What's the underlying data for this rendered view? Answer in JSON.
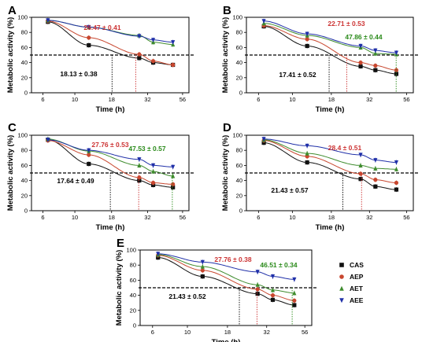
{
  "colors": {
    "CAS": "#111111",
    "AEP": "#c8472f",
    "AET": "#3f8c2e",
    "AEE": "#1f2fa8",
    "ann_red": "#cc3333",
    "ann_green": "#2a8a1a",
    "ann_black": "#000000"
  },
  "legend": [
    {
      "label": "CAS",
      "marker": "square",
      "color_key": "CAS"
    },
    {
      "label": "AEP",
      "marker": "circle",
      "color_key": "AEP"
    },
    {
      "label": "AET",
      "marker": "triangle-up",
      "color_key": "AET"
    },
    {
      "label": "AEE",
      "marker": "triangle-down",
      "color_key": "AEE"
    }
  ],
  "chart_data": [
    {
      "panel": "A",
      "type": "scatter",
      "x_axis": "log",
      "xlabel": "Time (h)",
      "ylabel": "Metabolic activity (%)",
      "x_ticks": [
        6,
        10,
        18,
        32,
        56
      ],
      "y_ticks": [
        0,
        20,
        40,
        60,
        80,
        100
      ],
      "ylim": [
        0,
        100
      ],
      "threshold_line": 50,
      "series": [
        {
          "name": "CAS",
          "x": [
            6.5,
            12.5,
            28,
            35,
            48
          ],
          "y": [
            94,
            63,
            46,
            40,
            37
          ]
        },
        {
          "name": "AEP",
          "x": [
            6.5,
            12.5,
            28,
            35,
            48
          ],
          "y": [
            95,
            73,
            51,
            42,
            37
          ]
        },
        {
          "name": "AET",
          "x": [
            6.5,
            12.5,
            28,
            35,
            48
          ],
          "y": [
            96,
            87,
            76,
            67,
            64
          ]
        },
        {
          "name": "AEE",
          "x": [
            6.5,
            12.5,
            28,
            35,
            48
          ],
          "y": [
            96,
            87,
            75,
            70,
            67
          ]
        }
      ],
      "annotations": [
        {
          "text": "26.47 ± 0.41",
          "color_key": "ann_red",
          "x": 26.47
        },
        {
          "text": "18.13 ± 0.38",
          "color_key": "ann_black",
          "x": 18.13
        }
      ]
    },
    {
      "panel": "B",
      "type": "scatter",
      "x_axis": "log",
      "xlabel": "Time (h)",
      "ylabel": "Metabolic activity (%)",
      "x_ticks": [
        6,
        10,
        18,
        32,
        56
      ],
      "y_ticks": [
        0,
        20,
        40,
        60,
        80,
        100
      ],
      "ylim": [
        0,
        100
      ],
      "threshold_line": 50,
      "series": [
        {
          "name": "CAS",
          "x": [
            6.5,
            12.5,
            28,
            35,
            48
          ],
          "y": [
            88,
            62,
            35,
            30,
            25
          ]
        },
        {
          "name": "AEP",
          "x": [
            6.5,
            12.5,
            28,
            35,
            48
          ],
          "y": [
            89,
            71,
            40,
            36,
            30
          ]
        },
        {
          "name": "AET",
          "x": [
            6.5,
            12.5,
            28,
            35,
            48
          ],
          "y": [
            92,
            76,
            60,
            52,
            51
          ]
        },
        {
          "name": "AEE",
          "x": [
            6.5,
            12.5,
            28,
            35,
            48
          ],
          "y": [
            95,
            78,
            62,
            56,
            53
          ]
        }
      ],
      "annotations": [
        {
          "text": "22.71 ± 0.53",
          "color_key": "ann_red",
          "x": 22.71
        },
        {
          "text": "47.86 ± 0.44",
          "color_key": "ann_green",
          "x": 47.86
        },
        {
          "text": "17.41 ± 0.52",
          "color_key": "ann_black",
          "x": 17.41
        }
      ]
    },
    {
      "panel": "C",
      "type": "scatter",
      "x_axis": "log",
      "xlabel": "Time (h)",
      "ylabel": "Metabolic activity (%)",
      "x_ticks": [
        6,
        10,
        18,
        32,
        56
      ],
      "y_ticks": [
        0,
        20,
        40,
        60,
        80,
        100
      ],
      "ylim": [
        0,
        100
      ],
      "threshold_line": 50,
      "series": [
        {
          "name": "CAS",
          "x": [
            6.5,
            12.5,
            28,
            35,
            48
          ],
          "y": [
            94,
            62,
            40,
            34,
            31
          ]
        },
        {
          "name": "AEP",
          "x": [
            6.5,
            12.5,
            28,
            35,
            48
          ],
          "y": [
            93,
            74,
            44,
            37,
            35
          ]
        },
        {
          "name": "AET",
          "x": [
            6.5,
            12.5,
            28,
            35,
            48
          ],
          "y": [
            95,
            79,
            60,
            52,
            46
          ]
        },
        {
          "name": "AEE",
          "x": [
            6.5,
            12.5,
            28,
            35,
            48
          ],
          "y": [
            94,
            80,
            68,
            60,
            58
          ]
        }
      ],
      "annotations": [
        {
          "text": "27.76 ± 0.53",
          "color_key": "ann_red",
          "x": 27.76
        },
        {
          "text": "47.53 ± 0.57",
          "color_key": "ann_green",
          "x": 47.53
        },
        {
          "text": "17.64 ± 0.49",
          "color_key": "ann_black",
          "x": 17.64
        }
      ]
    },
    {
      "panel": "D",
      "type": "scatter",
      "x_axis": "log",
      "xlabel": "Time (h)",
      "ylabel": "Metabolic activity (%)",
      "x_ticks": [
        6,
        10,
        18,
        32,
        56
      ],
      "y_ticks": [
        0,
        20,
        40,
        60,
        80,
        100
      ],
      "ylim": [
        0,
        100
      ],
      "threshold_line": 50,
      "series": [
        {
          "name": "CAS",
          "x": [
            6.5,
            12.5,
            28,
            35,
            48
          ],
          "y": [
            90,
            64,
            42,
            32,
            28
          ]
        },
        {
          "name": "AEP",
          "x": [
            6.5,
            12.5,
            28,
            35,
            48
          ],
          "y": [
            93,
            72,
            49,
            41,
            37
          ]
        },
        {
          "name": "AET",
          "x": [
            6.5,
            12.5,
            28,
            35,
            48
          ],
          "y": [
            94,
            76,
            60,
            56,
            55
          ]
        },
        {
          "name": "AEE",
          "x": [
            6.5,
            12.5,
            28,
            35,
            48
          ],
          "y": [
            95,
            86,
            74,
            67,
            64
          ]
        }
      ],
      "annotations": [
        {
          "text": "28.4 ± 0.51",
          "color_key": "ann_red",
          "x": 28.4
        },
        {
          "text": "21.43 ± 0.57",
          "color_key": "ann_black",
          "x": 21.43
        }
      ]
    },
    {
      "panel": "E",
      "type": "scatter",
      "x_axis": "log",
      "xlabel": "Time (h)",
      "ylabel": "Metabolic activity (%)",
      "x_ticks": [
        6,
        10,
        18,
        32,
        56
      ],
      "y_ticks": [
        0,
        20,
        40,
        60,
        80,
        100
      ],
      "ylim": [
        0,
        100
      ],
      "threshold_line": 50,
      "series": [
        {
          "name": "CAS",
          "x": [
            6.5,
            12.5,
            28,
            35,
            48
          ],
          "y": [
            90,
            65,
            42,
            34,
            27
          ]
        },
        {
          "name": "AEP",
          "x": [
            6.5,
            12.5,
            28,
            35,
            48
          ],
          "y": [
            93,
            73,
            48,
            40,
            33
          ]
        },
        {
          "name": "AET",
          "x": [
            6.5,
            12.5,
            28,
            35,
            48
          ],
          "y": [
            94,
            78,
            54,
            47,
            43
          ]
        },
        {
          "name": "AEE",
          "x": [
            6.5,
            12.5,
            28,
            35,
            48
          ],
          "y": [
            95,
            84,
            71,
            65,
            61
          ]
        }
      ],
      "annotations": [
        {
          "text": "27.76 ± 0.38",
          "color_key": "ann_red",
          "x": 27.76
        },
        {
          "text": "46.51 ± 0.34",
          "color_key": "ann_green",
          "x": 46.51
        },
        {
          "text": "21.43 ± 0.52",
          "color_key": "ann_black",
          "x": 21.43
        }
      ]
    }
  ]
}
